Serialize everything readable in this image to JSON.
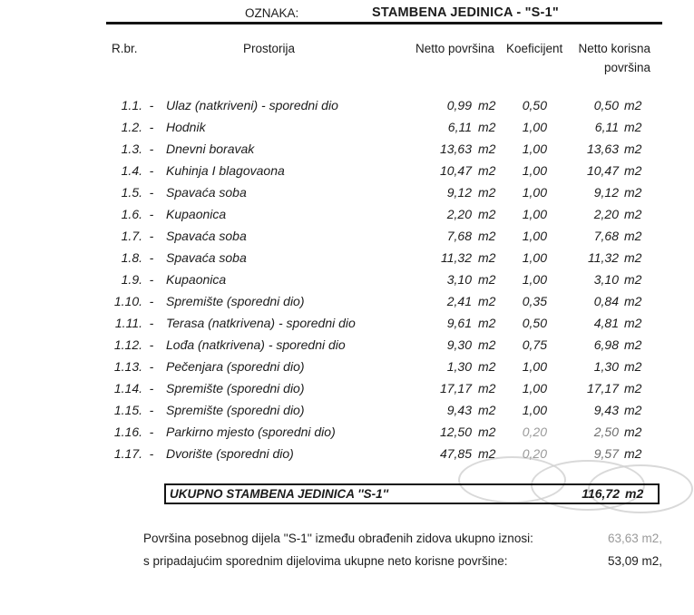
{
  "colors": {
    "ink": "#1c1c1c",
    "muted": "#9a9a9a",
    "watermark": "#cfcfcf"
  },
  "header": {
    "oznaka_label": "OZNAKA:",
    "title": "STAMBENA JEDINICA - \"S-1\""
  },
  "table": {
    "columns": {
      "rbr": "R.br.",
      "prostorija": "Prostorija",
      "netto": "Netto površina",
      "koeficijent": "Koeficijent",
      "korisna_line1": "Netto korisna",
      "korisna_line2": "površina"
    },
    "unit": "m2",
    "rows": [
      {
        "num": "1.1.",
        "dash": "-",
        "name": "Ulaz (natkriveni) - sporedni dio",
        "netto": "0,99",
        "koef": "0,50",
        "korisna": "0,50",
        "koef_muted": false,
        "korisna_dim": false
      },
      {
        "num": "1.2.",
        "dash": "-",
        "name": "Hodnik",
        "netto": "6,11",
        "koef": "1,00",
        "korisna": "6,11",
        "koef_muted": false,
        "korisna_dim": false
      },
      {
        "num": "1.3.",
        "dash": "-",
        "name": "Dnevni boravak",
        "netto": "13,63",
        "koef": "1,00",
        "korisna": "13,63",
        "koef_muted": false,
        "korisna_dim": false
      },
      {
        "num": "1.4.",
        "dash": "-",
        "name": "Kuhinja I blagovaona",
        "netto": "10,47",
        "koef": "1,00",
        "korisna": "10,47",
        "koef_muted": false,
        "korisna_dim": false
      },
      {
        "num": "1.5.",
        "dash": "-",
        "name": "Spavaća soba",
        "netto": "9,12",
        "koef": "1,00",
        "korisna": "9,12",
        "koef_muted": false,
        "korisna_dim": false
      },
      {
        "num": "1.6.",
        "dash": "-",
        "name": "Kupaonica",
        "netto": "2,20",
        "koef": "1,00",
        "korisna": "2,20",
        "koef_muted": false,
        "korisna_dim": false
      },
      {
        "num": "1.7.",
        "dash": "-",
        "name": "Spavaća soba",
        "netto": "7,68",
        "koef": "1,00",
        "korisna": "7,68",
        "koef_muted": false,
        "korisna_dim": false
      },
      {
        "num": "1.8.",
        "dash": "-",
        "name": "Spavaća soba",
        "netto": "11,32",
        "koef": "1,00",
        "korisna": "11,32",
        "koef_muted": false,
        "korisna_dim": false
      },
      {
        "num": "1.9.",
        "dash": "-",
        "name": "Kupaonica",
        "netto": "3,10",
        "koef": "1,00",
        "korisna": "3,10",
        "koef_muted": false,
        "korisna_dim": false
      },
      {
        "num": "1.10.",
        "dash": "-",
        "name": "Spremište (sporedni dio)",
        "netto": "2,41",
        "koef": "0,35",
        "korisna": "0,84",
        "koef_muted": false,
        "korisna_dim": false
      },
      {
        "num": "1.11.",
        "dash": "-",
        "name": "Terasa (natkrivena) - sporedni dio",
        "netto": "9,61",
        "koef": "0,50",
        "korisna": "4,81",
        "koef_muted": false,
        "korisna_dim": false
      },
      {
        "num": "1.12.",
        "dash": "-",
        "name": "Lođa (natkrivena) - sporedni dio",
        "netto": "9,30",
        "koef": "0,75",
        "korisna": "6,98",
        "koef_muted": false,
        "korisna_dim": false
      },
      {
        "num": "1.13.",
        "dash": "-",
        "name": "Pečenjara (sporedni dio)",
        "netto": "1,30",
        "koef": "1,00",
        "korisna": "1,30",
        "koef_muted": false,
        "korisna_dim": false
      },
      {
        "num": "1.14.",
        "dash": "-",
        "name": "Spremište (sporedni dio)",
        "netto": "17,17",
        "koef": "1,00",
        "korisna": "17,17",
        "koef_muted": false,
        "korisna_dim": false
      },
      {
        "num": "1.15.",
        "dash": "-",
        "name": "Spremište (sporedni dio)",
        "netto": "9,43",
        "koef": "1,00",
        "korisna": "9,43",
        "koef_muted": false,
        "korisna_dim": false
      },
      {
        "num": "1.16.",
        "dash": "-",
        "name": "Parkirno mjesto (sporedni dio)",
        "netto": "12,50",
        "koef": "0,20",
        "korisna": "2,50",
        "koef_muted": true,
        "korisna_dim": true
      },
      {
        "num": "1.17.",
        "dash": "-",
        "name": "Dvorište (sporedni dio)",
        "netto": "47,85",
        "koef": "0,20",
        "korisna": "9,57",
        "koef_muted": true,
        "korisna_dim": true
      }
    ],
    "total": {
      "label": "UKUPNO STAMBENA JEDINICA ''S-1''",
      "value": "116,72",
      "unit": "m2"
    }
  },
  "footer": {
    "lines": [
      {
        "label": "Površina posebnog dijela ''S-1'' između obrađenih zidova ukupno iznosi:",
        "value": "63,63 m2,"
      },
      {
        "label": "s pripadajućim sporednim dijelovima ukupne neto korisne površine:",
        "value": "53,09 m2,"
      }
    ]
  }
}
